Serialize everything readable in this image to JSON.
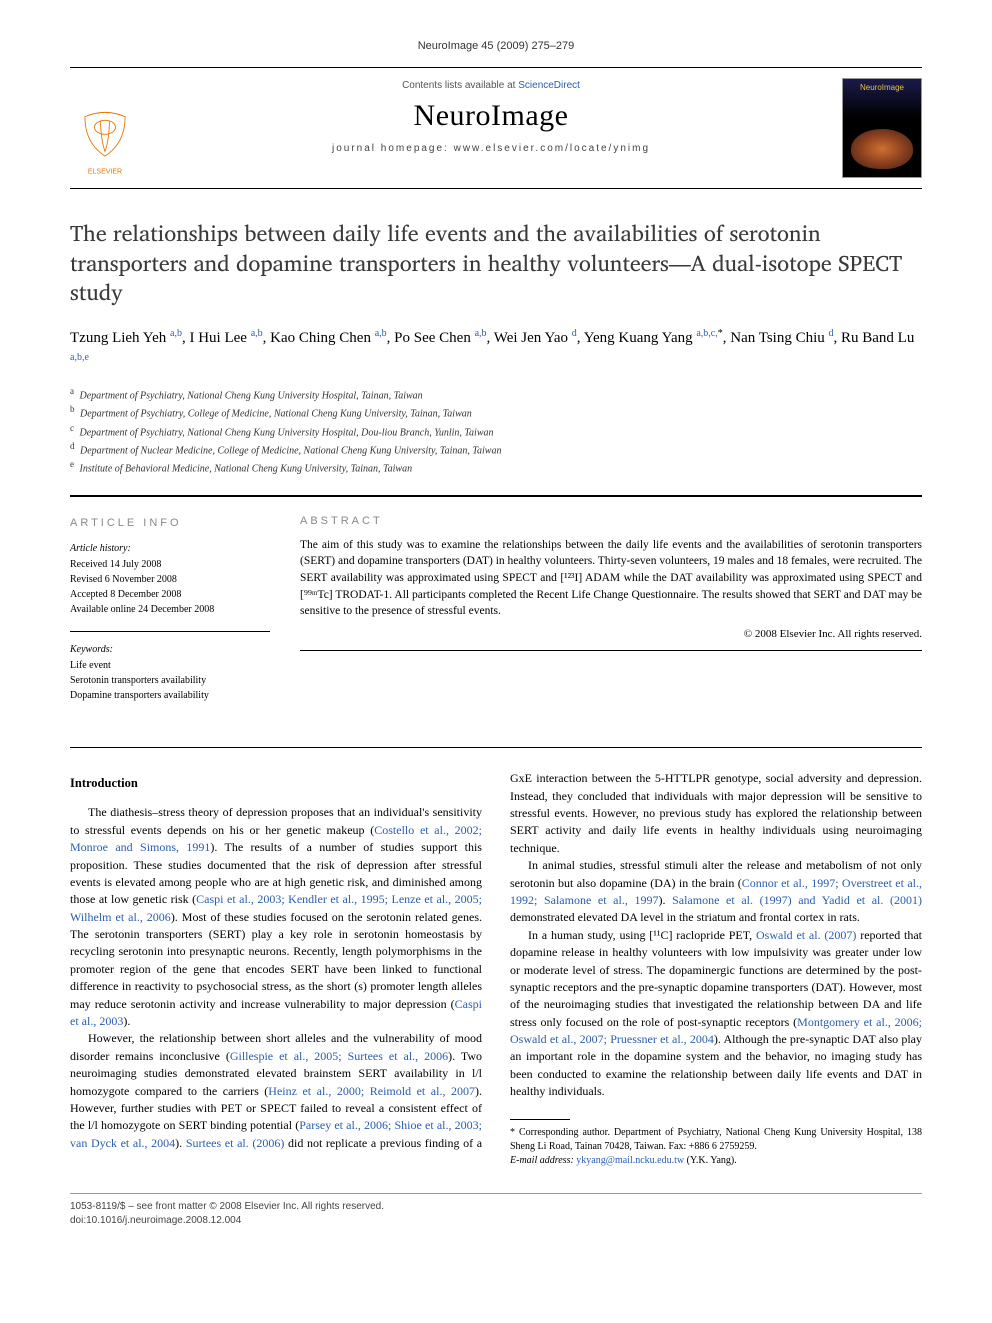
{
  "running_head": "NeuroImage 45 (2009) 275–279",
  "header": {
    "contents_prefix": "Contents lists available at ",
    "contents_link": "ScienceDirect",
    "journal": "NeuroImage",
    "homepage_label": "journal homepage: www.elsevier.com/locate/ynimg",
    "cover_label": "NeuroImage"
  },
  "title": "The relationships between daily life events and the availabilities of serotonin transporters and dopamine transporters in healthy volunteers—A dual-isotope SPECT study",
  "authors_html": "Tzung Lieh Yeh <sup>a,b</sup>, I Hui Lee <sup>a,b</sup>, Kao Ching Chen <sup>a,b</sup>, Po See Chen <sup>a,b</sup>, Wei Jen Yao <sup>d</sup>, Yeng Kuang Yang <sup>a,b,c,</sup><sup class=\"star\">*</sup>, Nan Tsing Chiu <sup>d</sup>, Ru Band Lu <sup>a,b,e</sup>",
  "affiliations": [
    {
      "key": "a",
      "text": "Department of Psychiatry, National Cheng Kung University Hospital, Tainan, Taiwan"
    },
    {
      "key": "b",
      "text": "Department of Psychiatry, College of Medicine, National Cheng Kung University, Tainan, Taiwan"
    },
    {
      "key": "c",
      "text": "Department of Psychiatry, National Cheng Kung University Hospital, Dou-liou Branch, Yunlin, Taiwan"
    },
    {
      "key": "d",
      "text": "Department of Nuclear Medicine, College of Medicine, National Cheng Kung University, Tainan, Taiwan"
    },
    {
      "key": "e",
      "text": "Institute of Behavioral Medicine, National Cheng Kung University, Tainan, Taiwan"
    }
  ],
  "info": {
    "heading": "ARTICLE INFO",
    "history_label": "Article history:",
    "history": [
      "Received 14 July 2008",
      "Revised 6 November 2008",
      "Accepted 8 December 2008",
      "Available online 24 December 2008"
    ],
    "keywords_label": "Keywords:",
    "keywords": [
      "Life event",
      "Serotonin transporters availability",
      "Dopamine transporters availability"
    ]
  },
  "abstract": {
    "heading": "ABSTRACT",
    "text": "The aim of this study was to examine the relationships between the daily life events and the availabilities of serotonin transporters (SERT) and dopamine transporters (DAT) in healthy volunteers. Thirty-seven volunteers, 19 males and 18 females, were recruited. The SERT availability was approximated using SPECT and [¹²³I] ADAM while the DAT availability was approximated using SPECT and [⁹⁹ᵐTc] TRODAT-1. All participants completed the Recent Life Change Questionnaire. The results showed that SERT and DAT may be sensitive to the presence of stressful events.",
    "copyright": "© 2008 Elsevier Inc. All rights reserved."
  },
  "body": {
    "intro_head": "Introduction",
    "p1a": "The diathesis–stress theory of depression proposes that an individual's sensitivity to stressful events depends on his or her genetic makeup (",
    "p1_cite1": "Costello et al., 2002; Monroe and Simons, 1991",
    "p1b": "). The results of a number of studies support this proposition. These studies documented that the risk of depression after stressful events is elevated among people who are at high genetic risk, and diminished among those at low genetic risk (",
    "p1_cite2": "Caspi et al., 2003; Kendler et al., 1995; Lenze et al., 2005; Wilhelm et al., 2006",
    "p1c": "). Most of these studies focused on the serotonin related genes. The serotonin transporters (SERT) play a key role in serotonin homeostasis by recycling serotonin into presynaptic neurons. Recently, length polymorphisms in the promoter region of the gene that encodes SERT have been linked to functional difference in reactivity to psychosocial stress, as the short (s) promoter length alleles may reduce serotonin activity and increase vulnerability to major depression (",
    "p1_cite3": "Caspi et al., 2003",
    "p1d": ").",
    "p2a": "However, the relationship between short alleles and the vulnerability of mood disorder remains inconclusive (",
    "p2_cite1": "Gillespie et al., 2005; Surtees et al., 2006",
    "p2b": "). Two neuroimaging studies demonstrated elevated brainstem SERT availability in l/l homozygote compared to the carriers (",
    "p2_cite2": "Heinz et al., 2000; Reimold et al., 2007",
    "p2c": "). However, further studies with PET or SPECT failed to reveal a consistent effect of the l/l homozygote on SERT binding potential (",
    "p2_cite3": "Parsey et al., 2006; Shioe et al., 2003; van Dyck et al., 2004",
    "p2d": "). ",
    "p2_cite4": "Surtees et al. (2006)",
    "p2e": " did not replicate a previous finding of a GxE interaction between the 5-HTTLPR genotype, social adversity and depression. Instead, they concluded that individuals with major depression will be sensitive to stressful events. However, no previous study has explored the relationship between SERT activity and daily life events in healthy individuals using neuroimaging technique.",
    "p3a": "In animal studies, stressful stimuli alter the release and metabolism of not only serotonin but also dopamine (DA) in the brain (",
    "p3_cite1": "Connor et al., 1997; Overstreet et al., 1992; Salamone et al., 1997",
    "p3b": "). ",
    "p3_cite2": "Salamone et al. (1997) and Yadid et al. (2001)",
    "p3c": " demonstrated elevated DA level in the striatum and frontal cortex in rats.",
    "p4a": "In a human study, using [¹¹C] raclopride PET, ",
    "p4_cite1": "Oswald et al. (2007)",
    "p4b": " reported that dopamine release in healthy volunteers with low impulsivity was greater under low or moderate level of stress. The dopaminergic functions are determined by the post-synaptic receptors and the pre-synaptic dopamine transporters (DAT). However, most of the neuroimaging studies that investigated the relationship between DA and life stress only focused on the role of post-synaptic receptors (",
    "p4_cite2": "Montgomery et al., 2006; Oswald et al., 2007; Pruessner et al., 2004",
    "p4c": "). Although the pre-synaptic DAT also play an important role in the dopamine system and the behavior, no imaging study has been conducted to examine the relationship between daily life events and DAT in healthy individuals."
  },
  "footnotes": {
    "corr": "* Corresponding author. Department of Psychiatry, National Cheng Kung University Hospital, 138 Sheng Li Road, Tainan 70428, Taiwan. Fax: +886 6 2759259.",
    "email_label": "E-mail address: ",
    "email": "ykyang@mail.ncku.edu.tw",
    "email_suffix": " (Y.K. Yang)."
  },
  "bottom": {
    "line1": "1053-8119/$ – see front matter © 2008 Elsevier Inc. All rights reserved.",
    "line2": "doi:10.1016/j.neuroimage.2008.12.004"
  },
  "style": {
    "link_color": "#2a5db0",
    "body_fontsize": 12,
    "title_fontsize": 22
  }
}
